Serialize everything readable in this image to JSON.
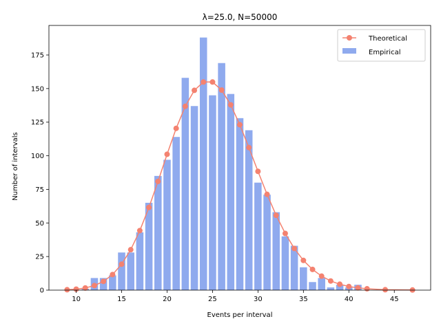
{
  "chart_data": {
    "type": "bar",
    "title": "λ=25.0, N=50000",
    "xlabel": "Events per interval",
    "ylabel": "Number of intervals",
    "xlim": [
      7,
      49
    ],
    "ylim": [
      0,
      197
    ],
    "xticks": [
      10,
      15,
      20,
      25,
      30,
      35,
      40,
      45
    ],
    "yticks": [
      0,
      25,
      50,
      75,
      100,
      125,
      150,
      175
    ],
    "grid": false,
    "legend_position": "top-right",
    "colors": {
      "bar": "#8faaee",
      "line": "#f48270"
    },
    "series": [
      {
        "name": "Empirical",
        "type": "bar",
        "x": [
          9,
          10,
          11,
          12,
          13,
          14,
          15,
          16,
          17,
          18,
          19,
          20,
          21,
          22,
          23,
          24,
          25,
          26,
          27,
          28,
          29,
          30,
          31,
          32,
          33,
          34,
          35,
          36,
          37,
          38,
          39,
          40,
          41,
          42,
          43,
          44,
          45,
          46,
          47
        ],
        "values": [
          0,
          0,
          1,
          9,
          9,
          11,
          28,
          28,
          43,
          65,
          85,
          97,
          114,
          158,
          137,
          188,
          145,
          169,
          146,
          128,
          119,
          80,
          71,
          58,
          40,
          33,
          17,
          6,
          9,
          2,
          4,
          2,
          4,
          0,
          0,
          0,
          0,
          0,
          0
        ]
      },
      {
        "name": "Theoretical",
        "type": "line",
        "x": [
          9,
          10,
          11,
          12,
          13,
          14,
          15,
          16,
          17,
          18,
          19,
          20,
          21,
          22,
          23,
          24,
          25,
          26,
          27,
          28,
          29,
          30,
          31,
          32,
          33,
          34,
          35,
          36,
          37,
          38,
          39,
          40,
          41,
          42,
          44,
          47
        ],
        "values": [
          0.3,
          0.7,
          1.6,
          3.4,
          6.5,
          11.6,
          19.3,
          30.1,
          44.3,
          61.5,
          80.9,
          101.1,
          120.4,
          136.8,
          148.7,
          154.9,
          154.9,
          148.9,
          137.9,
          123.1,
          106.1,
          88.4,
          71.3,
          55.7,
          42.2,
          31.0,
          22.1,
          15.4,
          10.4,
          6.8,
          4.4,
          2.7,
          1.7,
          1.0,
          0.3,
          0.1
        ]
      }
    ]
  }
}
